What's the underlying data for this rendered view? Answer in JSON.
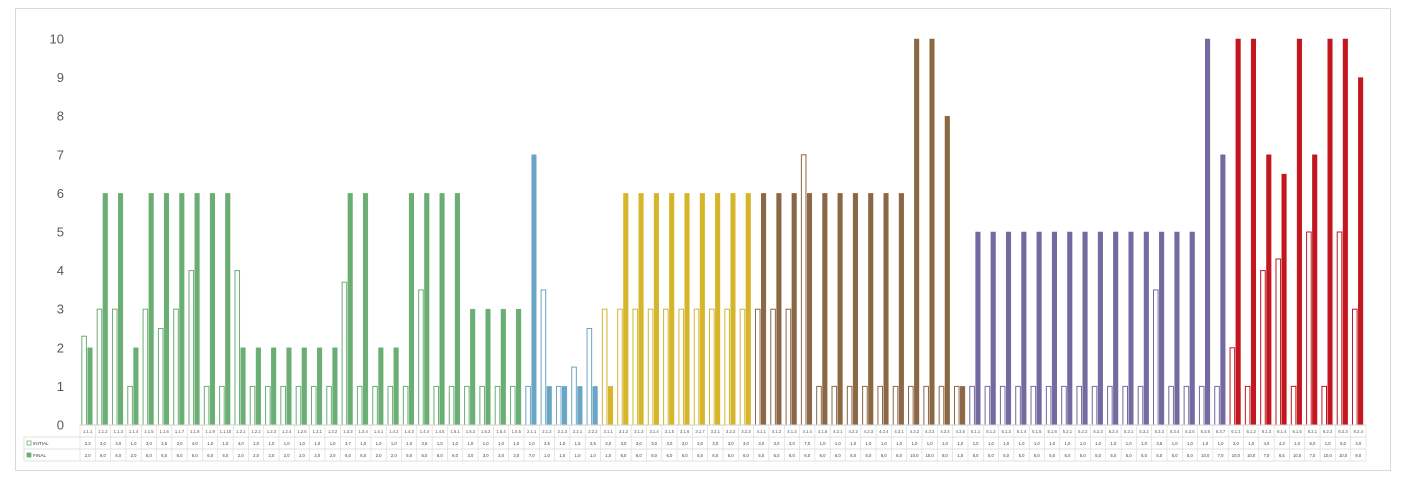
{
  "chart_data": {
    "type": "bar",
    "ylim": [
      0,
      10
    ],
    "yticks": [
      "0",
      "1",
      "2",
      "3",
      "4",
      "5",
      "6",
      "7",
      "8",
      "9",
      "10"
    ],
    "grid": false,
    "legend_placement": "data-table",
    "categories": [
      "1.1.1",
      "1.1.2",
      "1.1.3",
      "1.1.4",
      "1.1.5",
      "1.1.6",
      "1.1.7",
      "1.1.8",
      "1.1.9",
      "1.1.10",
      "1.2.1",
      "1.2.2",
      "1.2.3",
      "1.2.4",
      "1.2.5",
      "1.3.1",
      "1.3.2",
      "1.3.3",
      "1.3.4",
      "1.4.1",
      "1.4.2",
      "1.4.3",
      "1.4.4",
      "1.4.5",
      "1.5.1",
      "1.5.2",
      "1.5.3",
      "1.5.4",
      "1.5.5",
      "2.1.1",
      "2.1.2",
      "2.1.3",
      "2.2.1",
      "2.2.2",
      "3.1.1",
      "3.1.2",
      "3.1.3",
      "3.1.4",
      "3.1.5",
      "3.1.6",
      "3.1.7",
      "3.2.1",
      "3.2.2",
      "3.2.3",
      "4.1.1",
      "4.1.2",
      "4.1.3",
      "4.1.4",
      "4.1.5",
      "4.2.1",
      "4.2.2",
      "4.2.3",
      "4.2.4",
      "4.3.1",
      "4.3.2",
      "4.3.3",
      "4.3.4",
      "4.3.5",
      "5.1.1",
      "5.1.2",
      "5.1.3",
      "5.1.4",
      "5.1.5",
      "5.1.6",
      "5.2.1",
      "5.2.2",
      "5.2.3",
      "5.2.4",
      "5.3.1",
      "5.3.2",
      "5.3.3",
      "5.3.4",
      "5.3.5",
      "5.3.6",
      "5.3.7",
      "6.1.1",
      "6.1.2",
      "6.1.3",
      "6.1.4",
      "6.1.5",
      "6.2.1",
      "6.2.2",
      "6.2.3",
      "6.2.4"
    ],
    "group_colors": [
      "#6aae74",
      "#6aa5c6",
      "#d6b52b",
      "#8b6744",
      "#7469a0",
      "#c2171e"
    ],
    "group_sizes": [
      29,
      5,
      10,
      14,
      17,
      9
    ],
    "series": [
      {
        "name": "INITIAL",
        "style": "outline",
        "values": [
          2.3,
          3,
          3,
          1,
          3,
          2.5,
          3,
          4,
          1,
          1,
          4,
          1,
          1,
          1,
          1,
          1,
          1,
          3.7,
          1,
          1,
          1,
          1,
          3.5,
          1,
          1,
          1,
          1,
          1,
          1,
          1,
          3.5,
          1,
          1.5,
          2.5,
          3,
          3,
          3,
          3,
          3,
          3,
          3,
          3,
          3,
          3,
          3,
          3,
          3,
          7,
          1,
          1,
          1,
          1,
          1,
          1,
          1,
          1,
          1,
          1,
          1,
          1,
          1,
          1,
          1,
          1,
          1,
          1,
          1,
          1,
          1,
          1,
          3.5,
          1,
          1,
          1,
          1,
          2,
          1,
          4,
          4.3,
          1,
          5,
          1,
          5,
          3
        ],
        "labels": [
          "2,3",
          "3,0",
          "3,0",
          "1,0",
          "3,0",
          "2,5",
          "3,0",
          "4,0",
          "1,0",
          "1,0",
          "4,0",
          "1,0",
          "1,0",
          "1,0",
          "1,0",
          "1,0",
          "1,0",
          "3,7",
          "1,0",
          "1,0",
          "1,0",
          "1,0",
          "3,5",
          "1,0",
          "1,0",
          "1,0",
          "1,0",
          "1,0",
          "1,0",
          "1,0",
          "3,5",
          "1,0",
          "1,5",
          "2,5",
          "3,0",
          "3,0",
          "3,0",
          "3,0",
          "3,0",
          "3,0",
          "3,0",
          "3,0",
          "3,0",
          "3,0",
          "3,0",
          "3,0",
          "3,0",
          "7,0",
          "1,0",
          "1,0",
          "1,0",
          "1,0",
          "1,0",
          "1,0",
          "1,0",
          "1,0",
          "1,0",
          "1,0",
          "1,0",
          "1,0",
          "1,0",
          "1,0",
          "1,0",
          "1,0",
          "1,0",
          "1,0",
          "1,0",
          "1,0",
          "1,0",
          "1,0",
          "3,5",
          "1,0",
          "1,0",
          "1,0",
          "1,0",
          "2,0",
          "1,0",
          "4,0",
          "4,3",
          "1,0",
          "5,0",
          "1,0",
          "5,0",
          "3,0"
        ]
      },
      {
        "name": "FINAL",
        "style": "solid",
        "values": [
          2,
          6,
          6,
          2,
          6,
          6,
          6,
          6,
          6,
          6,
          2,
          2,
          2,
          2,
          2,
          2,
          2,
          6,
          6,
          2,
          2,
          6,
          6,
          6,
          6,
          3,
          3,
          3,
          3,
          7,
          1,
          1,
          1,
          1,
          1,
          6,
          6,
          6,
          6,
          6,
          6,
          6,
          6,
          6,
          6,
          6,
          6,
          6,
          6,
          6,
          6,
          6,
          6,
          6,
          10,
          10,
          8,
          1,
          5,
          5,
          5,
          5,
          5,
          5,
          5,
          5,
          5,
          5,
          5,
          5,
          5,
          5,
          5,
          10,
          7,
          10,
          10,
          7,
          6.5,
          10,
          7,
          10,
          10,
          9
        ],
        "labels": [
          "2,0",
          "6,0",
          "6,0",
          "2,0",
          "6,0",
          "6,0",
          "6,0",
          "6,0",
          "6,0",
          "6,0",
          "2,0",
          "2,0",
          "2,0",
          "2,0",
          "2,0",
          "2,0",
          "2,0",
          "6,0",
          "6,0",
          "2,0",
          "2,0",
          "6,0",
          "6,0",
          "6,0",
          "6,0",
          "3,0",
          "3,0",
          "3,0",
          "3,0",
          "7,0",
          "1,0",
          "1,0",
          "1,0",
          "1,0",
          "1,0",
          "6,0",
          "6,0",
          "6,0",
          "6,0",
          "6,0",
          "6,0",
          "6,0",
          "6,0",
          "6,0",
          "6,0",
          "6,0",
          "6,0",
          "6,0",
          "6,0",
          "6,0",
          "6,0",
          "6,0",
          "6,0",
          "6,0",
          "10,0",
          "10,0",
          "8,0",
          "1,0",
          "5,0",
          "5,0",
          "5,0",
          "5,0",
          "5,0",
          "5,0",
          "5,0",
          "5,0",
          "5,0",
          "5,0",
          "5,0",
          "5,0",
          "5,0",
          "5,0",
          "5,0",
          "10,0",
          "7,0",
          "10,0",
          "10,0",
          "7,0",
          "6,5",
          "10,0",
          "7,0",
          "10,0",
          "10,0",
          "9,0"
        ]
      }
    ]
  }
}
